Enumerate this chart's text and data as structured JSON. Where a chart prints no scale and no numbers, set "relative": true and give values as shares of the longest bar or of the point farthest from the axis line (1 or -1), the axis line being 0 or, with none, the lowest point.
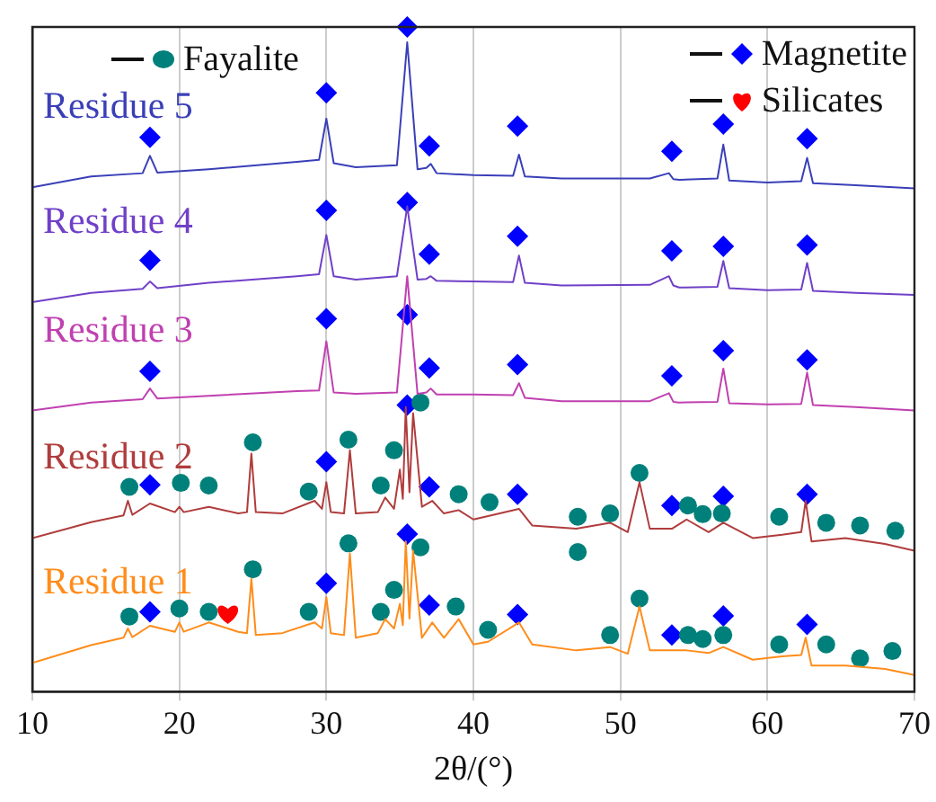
{
  "chart_data": {
    "type": "line",
    "xlabel": "2θ/(°)",
    "xlim": [
      10,
      70
    ],
    "xticks": [
      10,
      20,
      30,
      40,
      50,
      60,
      70
    ],
    "relative": true,
    "grid": "x",
    "legend": "top",
    "line_style": "solid",
    "series": [
      {
        "name": "Residue 5",
        "type": "line",
        "marker": "none",
        "color": "#3a3fb8",
        "x": [
          10,
          14,
          17.5,
          18,
          18.5,
          22,
          28,
          29.5,
          30,
          30.5,
          32,
          34.8,
          35.5,
          36.2,
          36.8,
          37.1,
          37.5,
          40,
          42.7,
          43.1,
          43.5,
          46,
          52,
          53.3,
          53.6,
          54,
          56.6,
          57,
          57.4,
          60,
          62.3,
          62.7,
          63.1,
          66,
          70
        ],
        "values": [
          0.759,
          0.775,
          0.78,
          0.806,
          0.781,
          0.786,
          0.797,
          0.8,
          0.862,
          0.795,
          0.789,
          0.792,
          0.977,
          0.786,
          0.788,
          0.794,
          0.78,
          0.777,
          0.776,
          0.808,
          0.775,
          0.772,
          0.772,
          0.78,
          0.771,
          0.77,
          0.772,
          0.823,
          0.769,
          0.766,
          0.768,
          0.803,
          0.765,
          0.762,
          0.757
        ]
      },
      {
        "name": "Residue 4",
        "type": "line",
        "marker": "none",
        "color": "#7040c8",
        "x": [
          10,
          14,
          17.5,
          18,
          18.5,
          22,
          28,
          29.5,
          30,
          30.5,
          32,
          34.8,
          35.5,
          36.2,
          36.8,
          37.1,
          37.5,
          40,
          42.7,
          43.1,
          43.5,
          46,
          52,
          53.3,
          53.6,
          54,
          56.6,
          57,
          57.4,
          60,
          62.3,
          62.7,
          63.1,
          66,
          70
        ],
        "values": [
          0.586,
          0.6,
          0.606,
          0.617,
          0.607,
          0.615,
          0.625,
          0.628,
          0.687,
          0.625,
          0.62,
          0.625,
          0.73,
          0.62,
          0.621,
          0.625,
          0.618,
          0.617,
          0.616,
          0.656,
          0.615,
          0.611,
          0.612,
          0.625,
          0.611,
          0.608,
          0.609,
          0.648,
          0.607,
          0.604,
          0.605,
          0.645,
          0.603,
          0.6,
          0.597
        ]
      },
      {
        "name": "Residue 3",
        "type": "line",
        "marker": "none",
        "color": "#c040b0",
        "x": [
          10,
          14,
          17.5,
          18,
          18.5,
          22,
          28,
          29.5,
          30,
          30.5,
          32,
          34.8,
          35.5,
          36.2,
          36.8,
          37.1,
          37.5,
          40,
          42.7,
          43.1,
          43.5,
          46,
          52,
          53.3,
          53.6,
          54,
          56.6,
          57,
          57.4,
          60,
          62.3,
          62.7,
          63.1,
          66,
          70
        ],
        "values": [
          0.423,
          0.435,
          0.44,
          0.456,
          0.441,
          0.445,
          0.452,
          0.453,
          0.527,
          0.45,
          0.448,
          0.45,
          0.625,
          0.448,
          0.45,
          0.456,
          0.447,
          0.447,
          0.446,
          0.464,
          0.442,
          0.437,
          0.437,
          0.449,
          0.436,
          0.435,
          0.436,
          0.486,
          0.434,
          0.432,
          0.433,
          0.48,
          0.431,
          0.428,
          0.423
        ]
      },
      {
        "name": "Residue 2",
        "type": "line",
        "marker": "none",
        "color": "#b03c3c",
        "x": [
          10,
          14,
          16.2,
          16.5,
          16.8,
          18,
          19.7,
          20,
          20.3,
          22,
          24,
          24.6,
          24.9,
          25.2,
          27,
          29.2,
          29.7,
          30,
          30.3,
          31.2,
          31.6,
          32,
          33.5,
          34,
          34.6,
          35,
          35.2,
          35.4,
          35.65,
          35.9,
          36.5,
          37.2,
          38,
          39,
          40,
          41,
          43.1,
          44,
          47,
          49.3,
          50.5,
          51.3,
          52,
          53.5,
          54.5,
          56,
          57,
          59,
          61,
          62.3,
          62.6,
          63,
          65.3,
          68,
          70
        ],
        "values": [
          0.231,
          0.255,
          0.265,
          0.287,
          0.266,
          0.283,
          0.27,
          0.278,
          0.27,
          0.278,
          0.268,
          0.27,
          0.358,
          0.27,
          0.268,
          0.287,
          0.275,
          0.315,
          0.27,
          0.268,
          0.363,
          0.268,
          0.27,
          0.292,
          0.275,
          0.334,
          0.29,
          0.428,
          0.3,
          0.419,
          0.278,
          0.287,
          0.268,
          0.273,
          0.259,
          0.264,
          0.275,
          0.25,
          0.245,
          0.254,
          0.24,
          0.315,
          0.245,
          0.245,
          0.259,
          0.24,
          0.254,
          0.231,
          0.236,
          0.24,
          0.287,
          0.226,
          0.231,
          0.222,
          0.212
        ]
      },
      {
        "name": "Residue 1",
        "type": "line",
        "marker": "none",
        "color": "#ff8c1a",
        "x": [
          10,
          14,
          16.2,
          16.5,
          16.8,
          18,
          19.7,
          20,
          20.3,
          22,
          24,
          24.6,
          24.9,
          25.2,
          27,
          29.2,
          29.7,
          30,
          30.3,
          31.2,
          31.6,
          32,
          33.5,
          34,
          34.6,
          35,
          35.2,
          35.4,
          35.65,
          35.9,
          36.5,
          37.2,
          38,
          39,
          40,
          41,
          43.1,
          44,
          47,
          49.3,
          50.5,
          51.3,
          52,
          53.5,
          54.5,
          56,
          57,
          59,
          61,
          62.3,
          62.6,
          63,
          65.3,
          68,
          70
        ],
        "values": [
          0.043,
          0.07,
          0.081,
          0.095,
          0.082,
          0.099,
          0.09,
          0.104,
          0.09,
          0.104,
          0.09,
          0.088,
          0.17,
          0.085,
          0.088,
          0.104,
          0.095,
          0.142,
          0.088,
          0.085,
          0.208,
          0.081,
          0.088,
          0.109,
          0.095,
          0.132,
          0.1,
          0.226,
          0.11,
          0.212,
          0.081,
          0.104,
          0.081,
          0.109,
          0.071,
          0.075,
          0.104,
          0.071,
          0.062,
          0.067,
          0.057,
          0.128,
          0.062,
          0.062,
          0.062,
          0.058,
          0.067,
          0.048,
          0.053,
          0.055,
          0.081,
          0.039,
          0.039,
          0.034,
          0.025
        ]
      },
      {
        "name": "Fayalite",
        "type": "scatter",
        "marker": "circle",
        "color": "#00807a",
        "x": [
          16.6,
          20.1,
          22.0,
          25.0,
          28.8,
          31.5,
          33.7,
          34.6,
          36.4,
          39.0,
          41.1,
          47.1,
          47.1,
          49.3,
          51.3,
          54.6,
          55.6,
          56.9,
          60.8,
          64.0,
          66.3,
          68.7,
          16.6,
          20.0,
          22.0,
          25.0,
          28.8,
          31.5,
          33.7,
          34.6,
          36.4,
          38.8,
          41.0,
          49.3,
          51.3,
          54.6,
          55.6,
          57.0,
          60.8,
          64.0,
          66.3,
          68.5
        ],
        "values": [
          0.308,
          0.314,
          0.31,
          0.375,
          0.301,
          0.379,
          0.31,
          0.363,
          0.435,
          0.297,
          0.285,
          0.263,
          0.21,
          0.268,
          0.329,
          0.28,
          0.267,
          0.268,
          0.263,
          0.254,
          0.25,
          0.242,
          0.113,
          0.125,
          0.12,
          0.184,
          0.12,
          0.223,
          0.12,
          0.153,
          0.217,
          0.128,
          0.093,
          0.085,
          0.14,
          0.085,
          0.079,
          0.085,
          0.071,
          0.071,
          0.05,
          0.061
        ]
      },
      {
        "name": "Magnetite",
        "type": "scatter",
        "marker": "diamond",
        "color": "#0000ff",
        "x": [
          18,
          30,
          35.5,
          37,
          43,
          53.5,
          57,
          62.7,
          18,
          30,
          35.5,
          37,
          43,
          53.5,
          57,
          62.7,
          18,
          30,
          35.5,
          37,
          43,
          53.5,
          57,
          62.7,
          18,
          30,
          35.5,
          37,
          43,
          53.5,
          57,
          62.7,
          18,
          30,
          35.5,
          37,
          43,
          53.5,
          57,
          62.7
        ],
        "values": [
          0.834,
          0.901,
          1.0,
          0.821,
          0.851,
          0.813,
          0.854,
          0.832,
          0.649,
          0.724,
          0.736,
          0.658,
          0.685,
          0.663,
          0.67,
          0.672,
          0.482,
          0.561,
          0.567,
          0.487,
          0.492,
          0.475,
          0.513,
          0.499,
          0.311,
          0.346,
          0.431,
          0.308,
          0.297,
          0.28,
          0.294,
          0.297,
          0.12,
          0.163,
          0.237,
          0.13,
          0.116,
          0.085,
          0.114,
          0.101
        ]
      },
      {
        "name": "Silicates",
        "type": "scatter",
        "color": "#ff0000",
        "x": [
          23.3
        ],
        "values": [
          0.118
        ]
      }
    ]
  }
}
